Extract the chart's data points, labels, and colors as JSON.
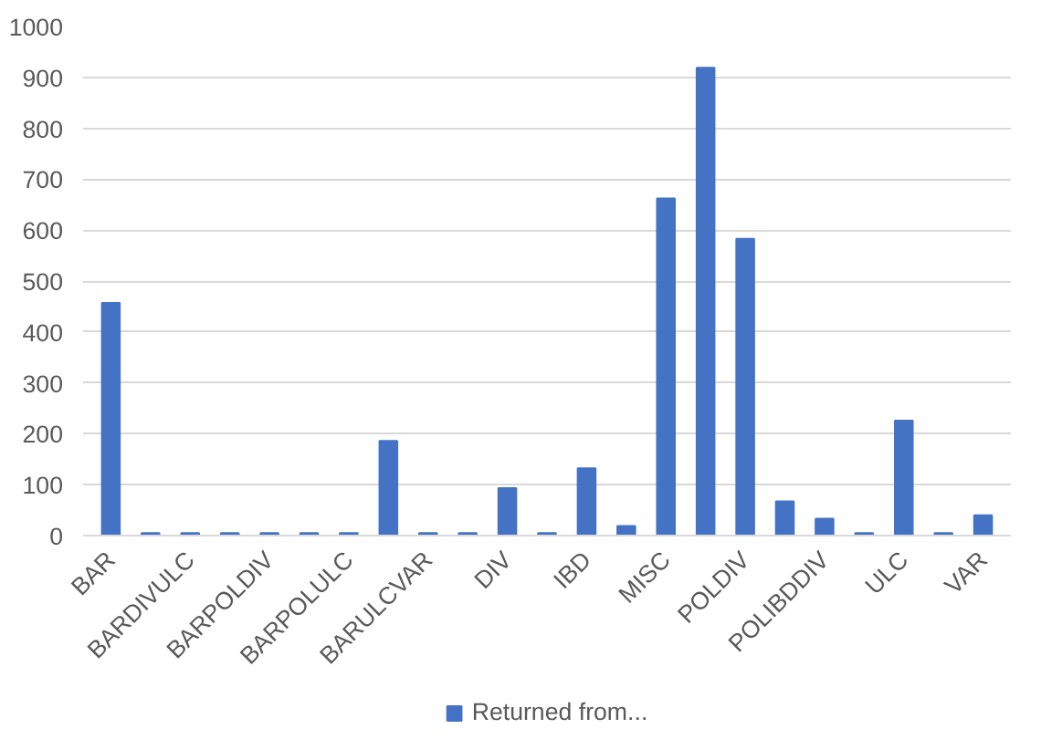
{
  "chart_data": {
    "type": "bar",
    "categories": [
      "BAR",
      null,
      "BARDIVULC",
      null,
      "BARPOLDIV",
      null,
      "BARPOLULC",
      null,
      "BARULCVAR",
      null,
      "DIV",
      null,
      "IBD",
      null,
      "MISC",
      null,
      "POLDIV",
      null,
      "POLIBDDIV",
      null,
      "ULC",
      null,
      "VAR"
    ],
    "series": [
      {
        "name": "Returned from...",
        "color": "#4472c4",
        "values": [
          457,
          5,
          5,
          5,
          5,
          5,
          5,
          186,
          5,
          5,
          93,
          5,
          132,
          19,
          662,
          919,
          583,
          67,
          33,
          5,
          226,
          5,
          40
        ]
      }
    ],
    "ylim": [
      0,
      1000
    ],
    "yticks": [
      0,
      100,
      200,
      300,
      400,
      500,
      600,
      700,
      800,
      900,
      1000
    ],
    "grid": "y",
    "legend": "bottom"
  }
}
